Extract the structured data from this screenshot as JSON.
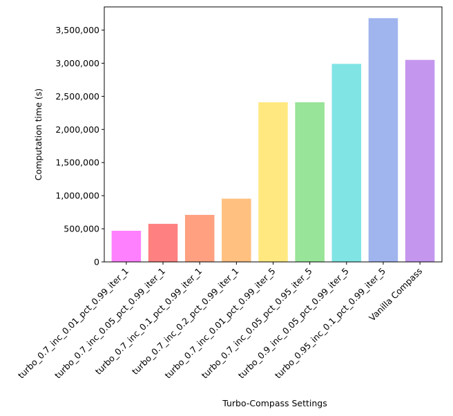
{
  "chart_data": {
    "type": "bar",
    "title": "",
    "xlabel": "Turbo-Compass Settings",
    "ylabel": "Computation time (s)",
    "categories": [
      "turbo_0.7_inc_0.01_pct_0.99_iter_1",
      "turbo_0.7_inc_0.05_pct_0.99_iter_1",
      "turbo_0.7_inc_0.1_pct_0.99_iter_1",
      "turbo_0.7_inc_0.2_pct_0.99_iter_1",
      "turbo_0.7_inc_0.01_pct_0.99_iter_5",
      "turbo_0.7_inc_0.05_pct_0.95_iter_5",
      "turbo_0.9_inc_0.05_pct_0.99_iter_5",
      "turbo_0.95_inc_0.1_pct_0.99_iter_5",
      "Vanilla Compass"
    ],
    "values": [
      470000,
      575000,
      710000,
      955000,
      2410000,
      2410000,
      2990000,
      3680000,
      3050000
    ],
    "colors": [
      "#ff80ff",
      "#ff8080",
      "#ffa080",
      "#ffc080",
      "#ffe880",
      "#98e498",
      "#80e4e4",
      "#a0b4ee",
      "#c496ee"
    ],
    "ylim": [
      0,
      3850000
    ],
    "yticks": [
      0,
      500000,
      1000000,
      1500000,
      2000000,
      2500000,
      3000000,
      3500000
    ],
    "ytick_labels": [
      "0",
      "500,000",
      "1,000,000",
      "1,500,000",
      "2,000,000",
      "2,500,000",
      "3,000,000",
      "3,500,000"
    ],
    "grid": false,
    "legend": "none"
  }
}
